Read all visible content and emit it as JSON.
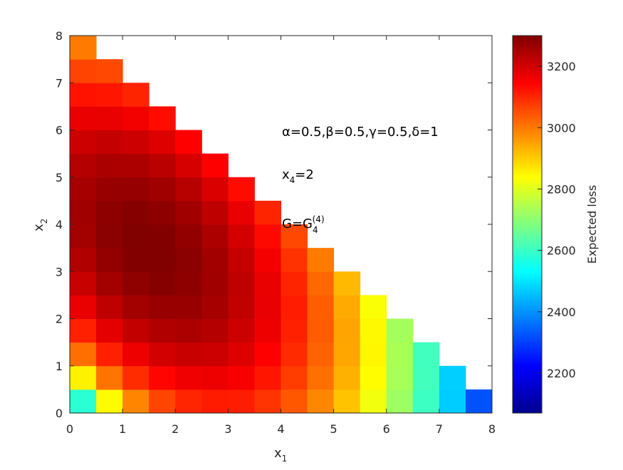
{
  "chart_data": {
    "type": "heatmap",
    "colormap": "jet",
    "x_label": [
      {
        "text": "x"
      },
      {
        "sub": "1"
      }
    ],
    "y_label": [
      {
        "text": "x"
      },
      {
        "sub": "2"
      }
    ],
    "colorbar_label": "Expected loss",
    "annotations": [
      [
        {
          "text": "α=0.5,β=0.5,γ=0.5,δ=1"
        }
      ],
      [
        {
          "text": "x"
        },
        {
          "sub": "4"
        },
        {
          "text": "=2"
        }
      ],
      [
        {
          "text": "G=G"
        },
        {
          "sub": "4"
        },
        {
          "sup": "(4)"
        }
      ]
    ],
    "xlim": [
      0,
      8
    ],
    "xticks": [
      0,
      1,
      2,
      3,
      4,
      5,
      6,
      7,
      8
    ],
    "ylim": [
      0,
      8
    ],
    "yticks": [
      0,
      1,
      2,
      3,
      4,
      5,
      6,
      7,
      8
    ],
    "clim": [
      2070,
      3300
    ],
    "cticks": [
      2200,
      2400,
      2600,
      2800,
      3000,
      3200
    ],
    "x": [
      0.25,
      0.75,
      1.25,
      1.75,
      2.25,
      2.75,
      3.25,
      3.75,
      4.25,
      4.75,
      5.25,
      5.75,
      6.25,
      6.75,
      7.25,
      7.75
    ],
    "y": [
      0.25,
      0.75,
      1.25,
      1.75,
      2.25,
      2.75,
      3.25,
      3.75,
      4.25,
      4.75,
      5.25,
      5.75,
      6.25,
      6.75,
      7.25,
      7.75
    ],
    "z": [
      [
        2583,
        2844,
        2986,
        3063,
        3102,
        3114,
        3111,
        3083,
        3041,
        2983,
        2911,
        2823,
        2721,
        2603,
        2471,
        2323
      ],
      [
        2854,
        3006,
        3093,
        3142,
        3164,
        3167,
        3153,
        3121,
        3073,
        3011,
        2933,
        2841,
        2733,
        2611,
        2473,
        null
      ],
      [
        3012,
        3108,
        3167,
        3199,
        3212,
        3208,
        3186,
        3148,
        3096,
        3028,
        2946,
        2848,
        2736,
        2608,
        null,
        null
      ],
      [
        3108,
        3177,
        3219,
        3242,
        3246,
        3236,
        3208,
        3166,
        3108,
        3036,
        2948,
        2846,
        2728,
        null,
        null,
        null
      ],
      [
        3172,
        3224,
        3257,
        3271,
        3271,
        3253,
        3221,
        3173,
        3111,
        3033,
        2941,
        2833,
        null,
        null,
        null,
        null
      ],
      [
        3214,
        3257,
        3281,
        3291,
        3283,
        3261,
        3223,
        3171,
        3103,
        3021,
        2923,
        null,
        null,
        null,
        null,
        null
      ],
      [
        3242,
        3276,
        3296,
        3298,
        3286,
        3258,
        3216,
        3158,
        3086,
        2998,
        null,
        null,
        null,
        null,
        null,
        null
      ],
      [
        3256,
        3286,
        3298,
        3296,
        3278,
        3246,
        3198,
        3136,
        3058,
        null,
        null,
        null,
        null,
        null,
        null,
        null
      ],
      [
        3261,
        3283,
        3291,
        3283,
        3261,
        3223,
        3171,
        3103,
        null,
        null,
        null,
        null,
        null,
        null,
        null,
        null
      ],
      [
        3253,
        3271,
        3273,
        3261,
        3233,
        3191,
        3133,
        null,
        null,
        null,
        null,
        null,
        null,
        null,
        null,
        null
      ],
      [
        3236,
        3248,
        3246,
        3228,
        3196,
        3148,
        null,
        null,
        null,
        null,
        null,
        null,
        null,
        null,
        null,
        null
      ],
      [
        3208,
        3216,
        3208,
        3186,
        3148,
        null,
        null,
        null,
        null,
        null,
        null,
        null,
        null,
        null,
        null,
        null
      ],
      [
        3171,
        3173,
        3161,
        3133,
        null,
        null,
        null,
        null,
        null,
        null,
        null,
        null,
        null,
        null,
        null,
        null
      ],
      [
        3123,
        3121,
        3103,
        null,
        null,
        null,
        null,
        null,
        null,
        null,
        null,
        null,
        null,
        null,
        null,
        null
      ],
      [
        3066,
        3058,
        null,
        null,
        null,
        null,
        null,
        null,
        null,
        null,
        null,
        null,
        null,
        null,
        null,
        null
      ],
      [
        2998,
        null,
        null,
        null,
        null,
        null,
        null,
        null,
        null,
        null,
        null,
        null,
        null,
        null,
        null,
        null
      ]
    ]
  }
}
